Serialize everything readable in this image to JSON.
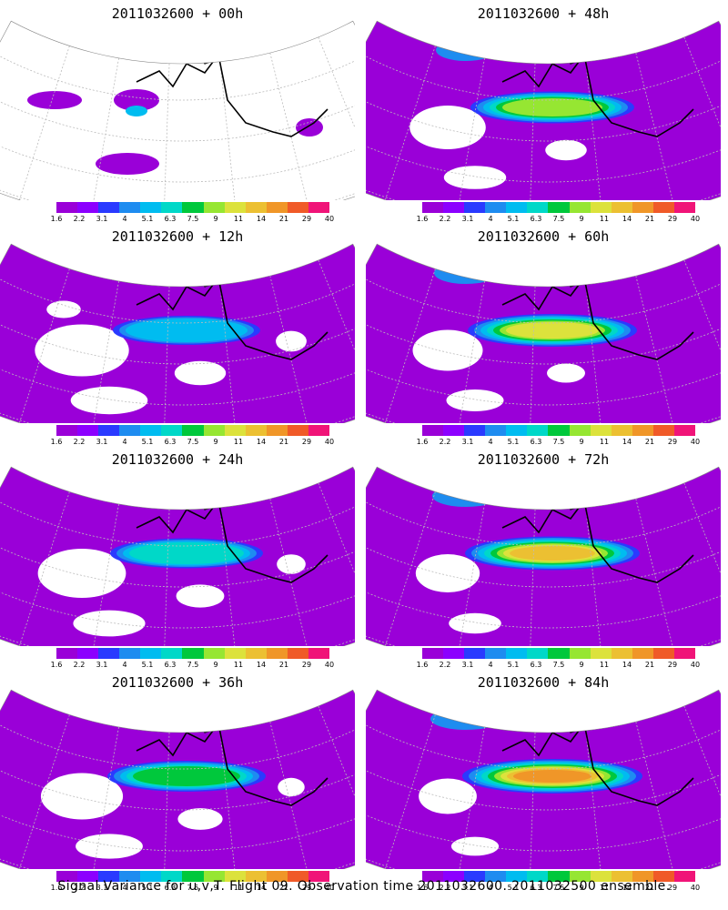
{
  "panels": [
    {
      "title": "2011032600 + 00h",
      "intensity": 0
    },
    {
      "title": "2011032600 + 48h",
      "intensity": 4
    },
    {
      "title": "2011032600 + 12h",
      "intensity": 1
    },
    {
      "title": "2011032600 + 60h",
      "intensity": 5
    },
    {
      "title": "2011032600 + 24h",
      "intensity": 2
    },
    {
      "title": "2011032600 + 72h",
      "intensity": 6
    },
    {
      "title": "2011032600 + 36h",
      "intensity": 3
    },
    {
      "title": "2011032600 + 84h",
      "intensity": 7
    }
  ],
  "colorbar": {
    "labels": [
      "1.6",
      "2.2",
      "3.1",
      "4",
      "5.1",
      "6.3",
      "7.5",
      "9",
      "11",
      "14",
      "21",
      "29",
      "40"
    ],
    "colors": [
      "#9a00d8",
      "#8c00ff",
      "#2a3aff",
      "#1e8cf0",
      "#00bcf0",
      "#00d8c8",
      "#00c83c",
      "#96e632",
      "#dce23c",
      "#ecc032",
      "#f09628",
      "#f05a28",
      "#f01478"
    ]
  },
  "map_colors": {
    "fill": "#9a00d8",
    "coast": "#000000",
    "grid": "#bbbbbb"
  },
  "caption": "Signal Variance for u,v,T. Flight 09. Observation time 2011032600. 2011032500 ensemble."
}
